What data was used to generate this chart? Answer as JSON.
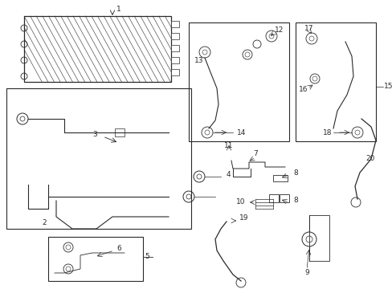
{
  "bg_color": "#ffffff",
  "lc": "#2a2a2a",
  "fc": "#f5f5f5",
  "figsize": [
    4.89,
    3.6
  ],
  "dpi": 100
}
